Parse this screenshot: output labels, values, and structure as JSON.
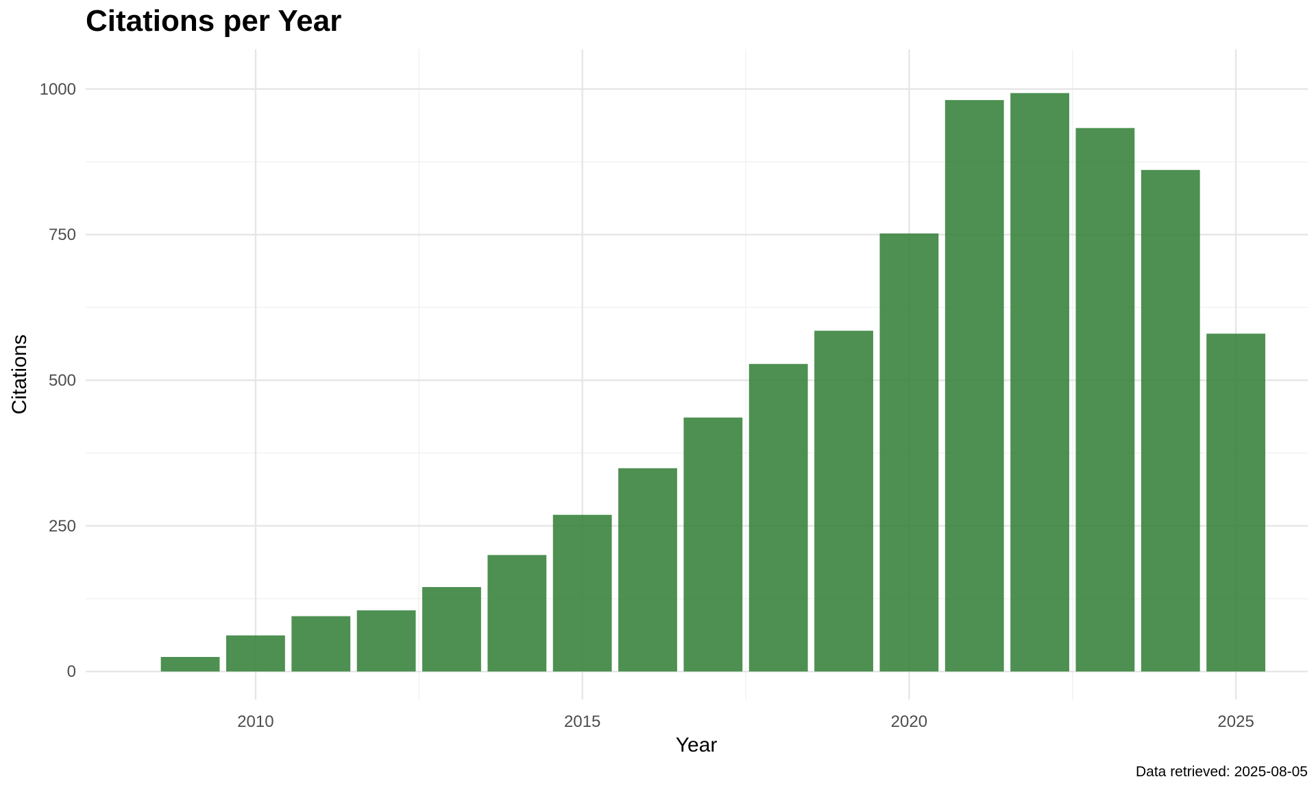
{
  "chart_data": {
    "type": "bar",
    "title": "Citations per Year",
    "xlabel": "Year",
    "ylabel": "Citations",
    "caption": "Data retrieved: 2025-08-05",
    "x": [
      2009,
      2010,
      2011,
      2012,
      2013,
      2014,
      2015,
      2016,
      2017,
      2018,
      2019,
      2020,
      2021,
      2022,
      2023,
      2024,
      2025
    ],
    "values": [
      25,
      62,
      95,
      105,
      145,
      200,
      269,
      349,
      436,
      528,
      585,
      752,
      981,
      993,
      933,
      861,
      580
    ],
    "xlim": [
      2007.4,
      2026.1
    ],
    "ylim": [
      -48,
      1068
    ],
    "x_ticks": [
      "2010",
      "2015",
      "2020",
      "2025"
    ],
    "y_ticks": [
      "0",
      "250",
      "500",
      "750",
      "1000"
    ],
    "bar_color": "#2e7d32",
    "bar_opacity": 0.85,
    "grid": true,
    "legend": "none"
  }
}
